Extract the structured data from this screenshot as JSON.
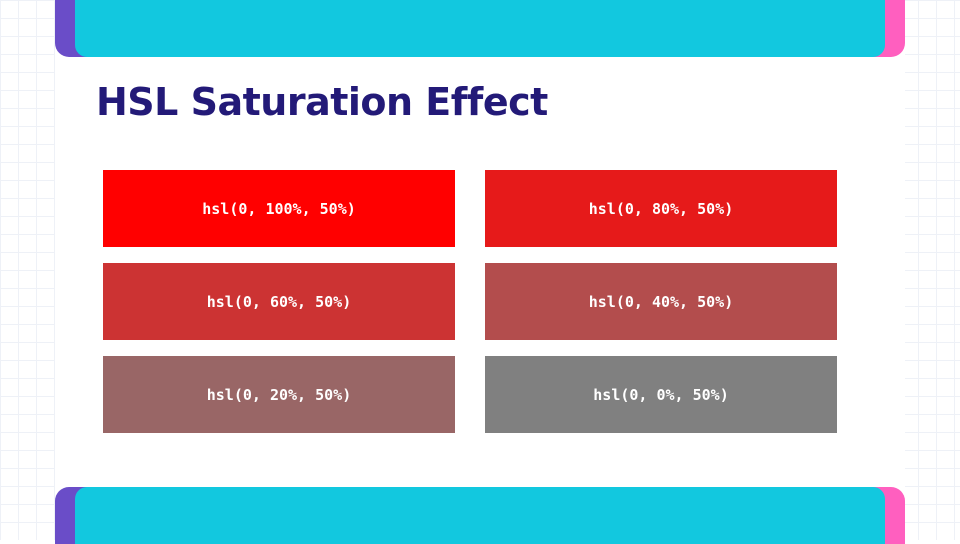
{
  "slide": {
    "title": "HSL Saturation Effect"
  },
  "colors": {
    "accent_bar": "#12c8df",
    "accent_left": "#6a4dc8",
    "accent_right": "#ff5fbf",
    "title": "#231a78"
  },
  "swatches": [
    {
      "label": "hsl(0, 100%, 50%)",
      "color": "#ff0000"
    },
    {
      "label": "hsl(0, 80%, 50%)",
      "color": "#e61a1a"
    },
    {
      "label": "hsl(0, 60%, 50%)",
      "color": "#cc3333"
    },
    {
      "label": "hsl(0, 40%, 50%)",
      "color": "#b34d4d"
    },
    {
      "label": "hsl(0, 20%, 50%)",
      "color": "#996666"
    },
    {
      "label": "hsl(0, 0%, 50%)",
      "color": "#808080"
    }
  ]
}
